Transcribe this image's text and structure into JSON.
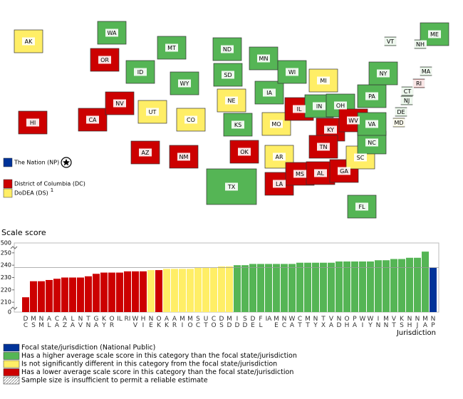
{
  "map": {
    "states": [
      {
        "code": "WA",
        "color": "#55b555"
      },
      {
        "code": "OR",
        "color": "#cc0000"
      },
      {
        "code": "CA",
        "color": "#cc0000"
      },
      {
        "code": "NV",
        "color": "#cc0000"
      },
      {
        "code": "ID",
        "color": "#55b555"
      },
      {
        "code": "MT",
        "color": "#55b555"
      },
      {
        "code": "WY",
        "color": "#55b555"
      },
      {
        "code": "UT",
        "color": "#ffee66"
      },
      {
        "code": "CO",
        "color": "#ffee66"
      },
      {
        "code": "AZ",
        "color": "#cc0000"
      },
      {
        "code": "NM",
        "color": "#cc0000"
      },
      {
        "code": "ND",
        "color": "#55b555"
      },
      {
        "code": "SD",
        "color": "#55b555"
      },
      {
        "code": "NE",
        "color": "#ffee66"
      },
      {
        "code": "KS",
        "color": "#55b555"
      },
      {
        "code": "OK",
        "color": "#cc0000"
      },
      {
        "code": "TX",
        "color": "#55b555"
      },
      {
        "code": "MN",
        "color": "#55b555"
      },
      {
        "code": "IA",
        "color": "#55b555"
      },
      {
        "code": "MO",
        "color": "#ffee66"
      },
      {
        "code": "AR",
        "color": "#ffee66"
      },
      {
        "code": "LA",
        "color": "#cc0000"
      },
      {
        "code": "WI",
        "color": "#55b555"
      },
      {
        "code": "IL",
        "color": "#cc0000"
      },
      {
        "code": "MS",
        "color": "#cc0000"
      },
      {
        "code": "AL",
        "color": "#cc0000"
      },
      {
        "code": "MI",
        "color": "#ffee66"
      },
      {
        "code": "IN",
        "color": "#55b555"
      },
      {
        "code": "KY",
        "color": "#cc0000"
      },
      {
        "code": "TN",
        "color": "#cc0000"
      },
      {
        "code": "GA",
        "color": "#cc0000"
      },
      {
        "code": "OH",
        "color": "#55b555"
      },
      {
        "code": "WV",
        "color": "#cc0000"
      },
      {
        "code": "FL",
        "color": "#55b555"
      },
      {
        "code": "SC",
        "color": "#ffee66"
      },
      {
        "code": "NC",
        "color": "#55b555"
      },
      {
        "code": "VA",
        "color": "#55b555"
      },
      {
        "code": "PA",
        "color": "#55b555"
      },
      {
        "code": "NY",
        "color": "#55b555"
      },
      {
        "code": "VT",
        "color": "#55b555"
      },
      {
        "code": "NH",
        "color": "#55b555"
      },
      {
        "code": "ME",
        "color": "#55b555"
      },
      {
        "code": "MA",
        "color": "#55b555"
      },
      {
        "code": "RI",
        "color": "#cc0000"
      },
      {
        "code": "CT",
        "color": "#55b555"
      },
      {
        "code": "NJ",
        "color": "#55b555"
      },
      {
        "code": "DE",
        "color": "#55b555"
      },
      {
        "code": "MD",
        "color": "#ffee66"
      },
      {
        "code": "AK",
        "color": "#ffee66"
      },
      {
        "code": "HI",
        "color": "#cc0000"
      }
    ],
    "side_legend": [
      {
        "label": "The Nation (NP)",
        "color": "#003399"
      },
      {
        "label": "District of Columbia (DC)",
        "color": "#cc0000"
      },
      {
        "label": "DoDEA (DS)",
        "color": "#ffee66",
        "note": "1"
      }
    ]
  },
  "chart_data": {
    "type": "bar",
    "y_label": "Scale score",
    "x_label": "Jurisdiction",
    "categories": [
      "DC",
      "MS",
      "NM",
      "AL",
      "CA",
      "AZ",
      "LA",
      "NV",
      "TN",
      "GA",
      "KY",
      "OR",
      "IL",
      "RI",
      "WV",
      "HI",
      "NE",
      "OK",
      "AK",
      "AR",
      "MI",
      "MO",
      "SC",
      "UT",
      "CO",
      "DS",
      "MD",
      "ID",
      "SD",
      "DE",
      "FL",
      "IA",
      "ME",
      "NC",
      "WA",
      "CT",
      "MT",
      "NY",
      "TX",
      "VA",
      "ND",
      "OH",
      "PA",
      "WI",
      "WY",
      "IN",
      "MN",
      "VT",
      "KS",
      "NH",
      "NJ",
      "MA",
      "NP"
    ],
    "values": [
      214,
      227,
      227,
      228,
      229,
      230,
      230,
      230,
      231,
      233,
      234,
      234,
      234,
      235,
      235,
      235,
      236,
      236,
      237,
      237,
      237,
      237,
      238,
      238,
      238,
      239,
      239,
      240,
      240,
      241,
      241,
      241,
      241,
      241,
      241,
      242,
      242,
      242,
      242,
      242,
      243,
      243,
      243,
      243,
      243,
      244,
      244,
      245,
      245,
      246,
      246,
      251,
      238
    ],
    "colors": [
      "#cc0000",
      "#cc0000",
      "#cc0000",
      "#cc0000",
      "#cc0000",
      "#cc0000",
      "#cc0000",
      "#cc0000",
      "#cc0000",
      "#cc0000",
      "#cc0000",
      "#cc0000",
      "#cc0000",
      "#cc0000",
      "#cc0000",
      "#cc0000",
      "#ffee66",
      "#cc0000",
      "#ffee66",
      "#ffee66",
      "#ffee66",
      "#ffee66",
      "#ffee66",
      "#ffee66",
      "#ffee66",
      "#ffee66",
      "#ffee66",
      "#55b555",
      "#55b555",
      "#55b555",
      "#55b555",
      "#55b555",
      "#55b555",
      "#55b555",
      "#55b555",
      "#55b555",
      "#55b555",
      "#55b555",
      "#55b555",
      "#55b555",
      "#55b555",
      "#55b555",
      "#55b555",
      "#55b555",
      "#55b555",
      "#55b555",
      "#55b555",
      "#55b555",
      "#55b555",
      "#55b555",
      "#55b555",
      "#55b555",
      "#003399"
    ],
    "ylim": [
      202,
      258
    ],
    "yticks": [
      210,
      220,
      230,
      240,
      250
    ],
    "break_labels": {
      "low": "0",
      "high": "500"
    },
    "legend": [
      {
        "label": "Focal state/jurisdiction (National Public)",
        "color": "#003399"
      },
      {
        "label": "Has a higher average scale score in this category than the focal state/jurisdiction",
        "color": "#55b555"
      },
      {
        "label": "Is not significantly different in this category from the focal state/jurisdiction",
        "color": "#ffee66"
      },
      {
        "label": "Has a lower average scale score in this category than the focal state/jurisdiction",
        "color": "#cc0000"
      },
      {
        "label": "Sample size is insufficient to permit a reliable estimate",
        "hatched": true
      }
    ]
  }
}
